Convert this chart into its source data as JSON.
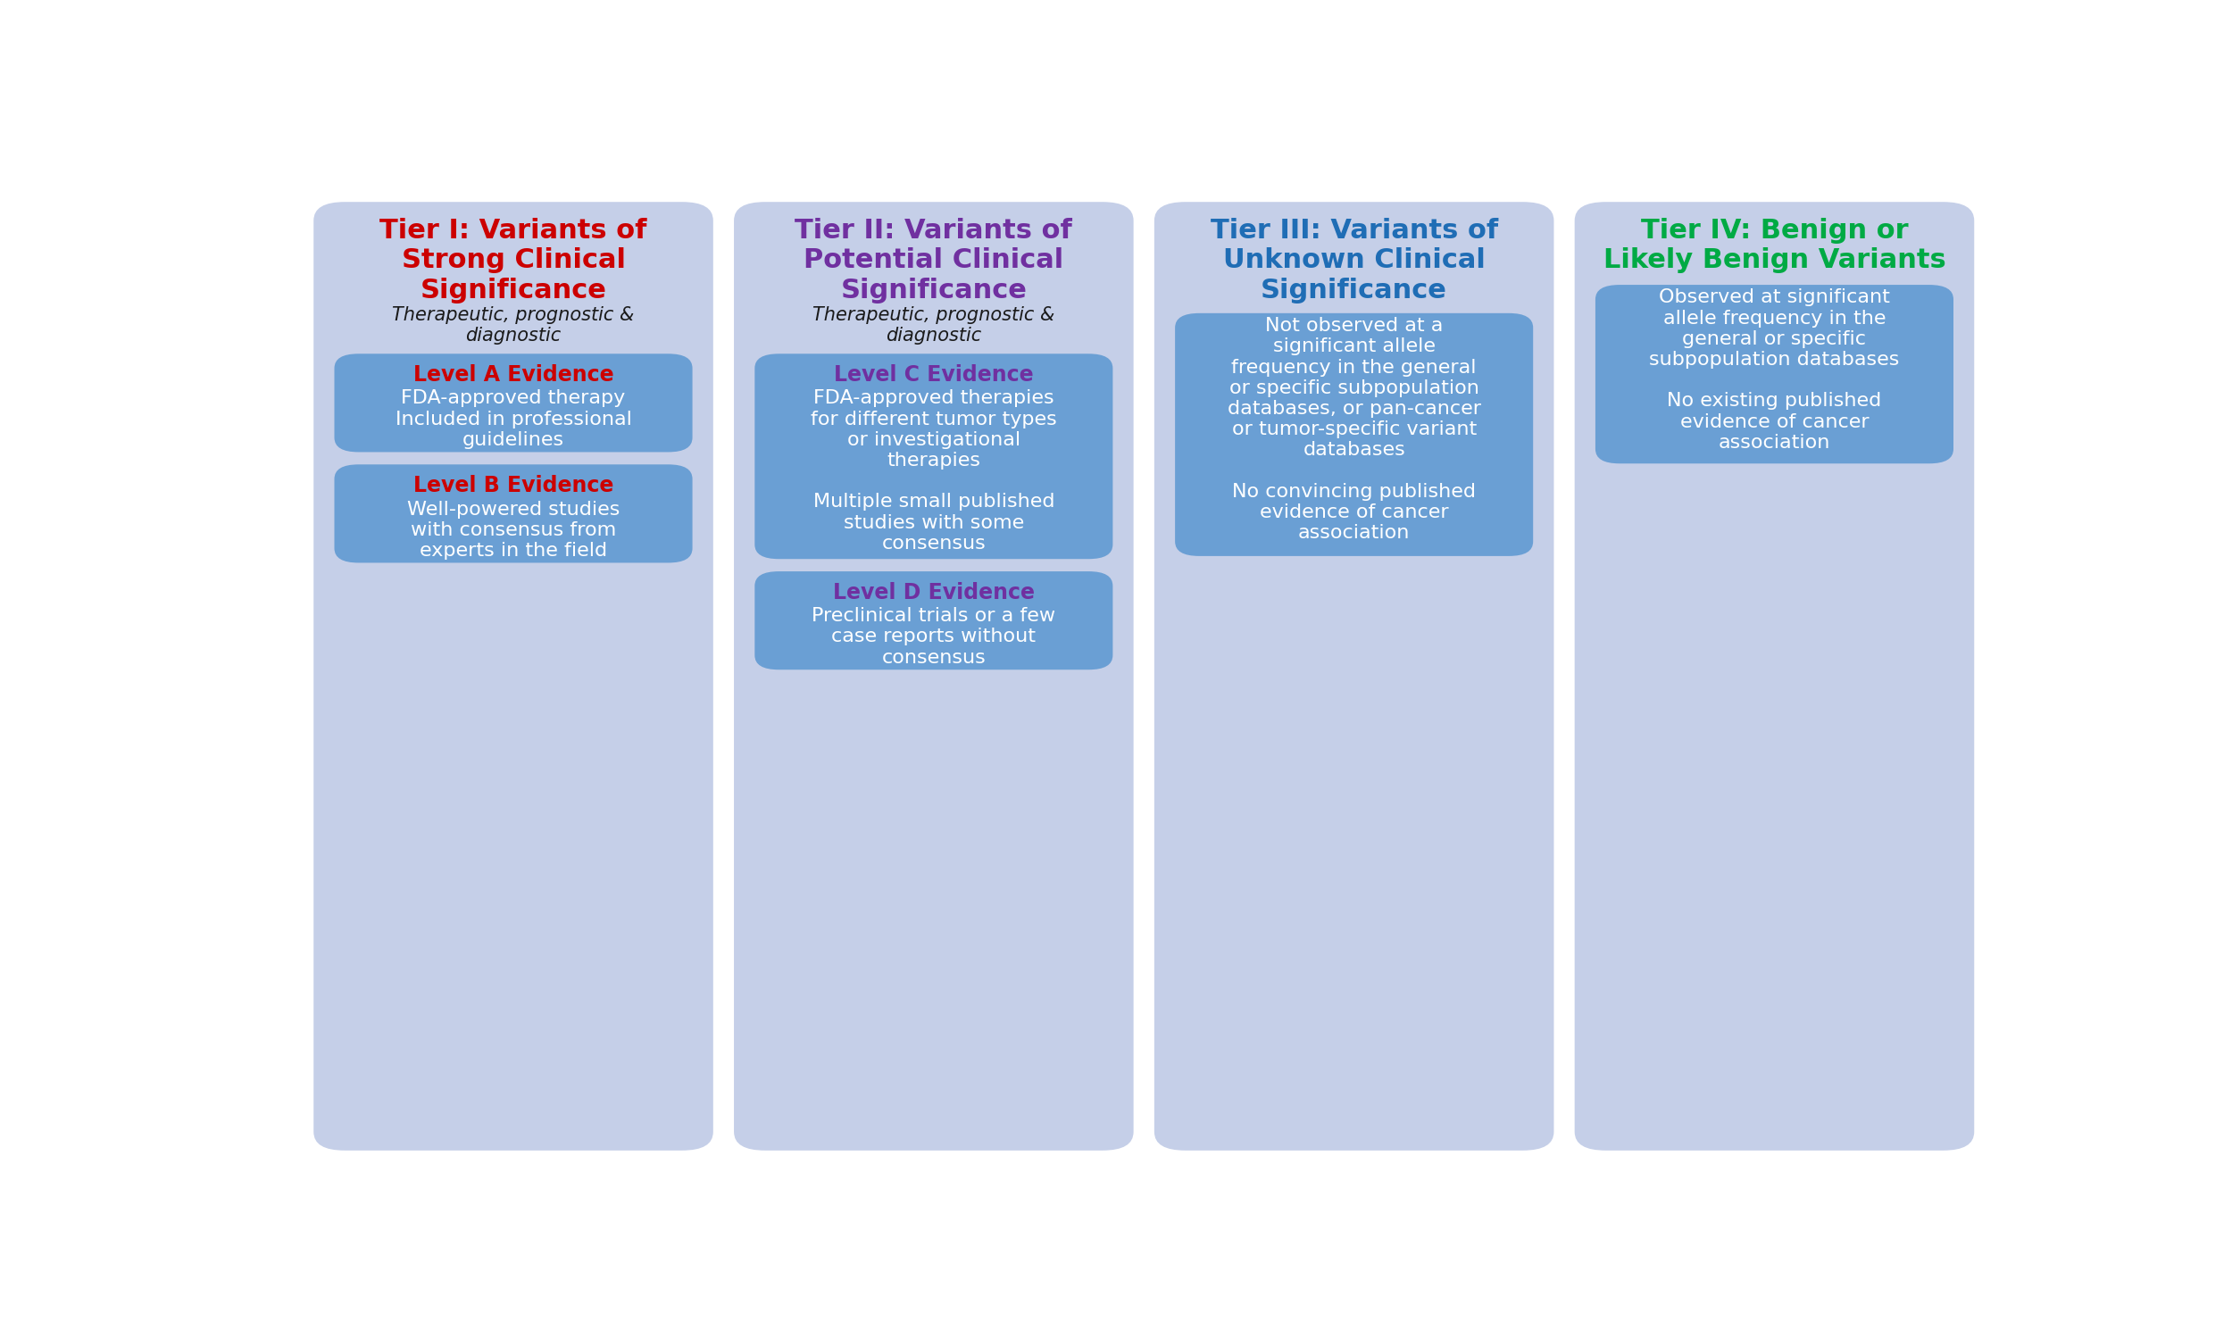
{
  "background_color": "#ffffff",
  "outer_bg_color": "#c5cfe8",
  "inner_box_color": "#6a9fd4",
  "fig_width": 25.0,
  "fig_height": 15.0,
  "tiers": [
    {
      "title": "Tier I: Variants of\nStrong Clinical\nSignificance",
      "title_color": "#cc0000",
      "title_fontsize": 22,
      "subtitle": "Therapeutic, prognostic &\ndiagnostic",
      "subtitle_fontsize": 15,
      "levels": [
        {
          "title": "Level A Evidence",
          "title_color": "#cc0000",
          "title_fontsize": 17,
          "body": "FDA-approved therapy\nIncluded in professional\nguidelines",
          "body_fontsize": 16
        },
        {
          "title": "Level B Evidence",
          "title_color": "#cc0000",
          "title_fontsize": 17,
          "body": "Well-powered studies\nwith consensus from\nexperts in the field",
          "body_fontsize": 16
        }
      ]
    },
    {
      "title": "Tier II: Variants of\nPotential Clinical\nSignificance",
      "title_color": "#7030a0",
      "title_fontsize": 22,
      "subtitle": "Therapeutic, prognostic &\ndiagnostic",
      "subtitle_fontsize": 15,
      "levels": [
        {
          "title": "Level C Evidence",
          "title_color": "#7030a0",
          "title_fontsize": 17,
          "body": "FDA-approved therapies\nfor different tumor types\nor investigational\ntherapies\n\nMultiple small published\nstudies with some\nconsensus",
          "body_fontsize": 16
        },
        {
          "title": "Level D Evidence",
          "title_color": "#7030a0",
          "title_fontsize": 17,
          "body": "Preclinical trials or a few\ncase reports without\nconsensus",
          "body_fontsize": 16
        }
      ]
    },
    {
      "title": "Tier III: Variants of\nUnknown Clinical\nSignificance",
      "title_color": "#1f6db5",
      "title_fontsize": 22,
      "subtitle": "",
      "subtitle_fontsize": 15,
      "levels": [
        {
          "title": "",
          "title_color": "#1f6db5",
          "title_fontsize": 17,
          "body": "Not observed at a\nsignificant allele\nfrequency in the general\nor specific subpopulation\ndatabases, or pan-cancer\nor tumor-specific variant\ndatabases\n\nNo convincing published\nevidence of cancer\nassociation",
          "body_fontsize": 16
        }
      ]
    },
    {
      "title": "Tier IV: Benign or\nLikely Benign Variants",
      "title_color": "#00aa44",
      "title_fontsize": 22,
      "subtitle": "",
      "subtitle_fontsize": 15,
      "levels": [
        {
          "title": "",
          "title_color": "#00aa44",
          "title_fontsize": 17,
          "body": "Observed at significant\nallele frequency in the\ngeneral or specific\nsubpopulation databases\n\nNo existing published\nevidence of cancer\nassociation",
          "body_fontsize": 16
        }
      ]
    }
  ]
}
